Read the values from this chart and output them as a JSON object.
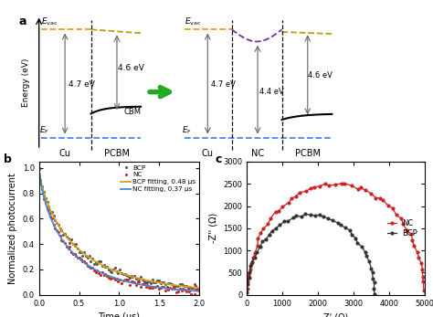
{
  "tpc": {
    "tau_bcp": 0.48,
    "tau_nc": 0.37,
    "bcp_color": "#555555",
    "nc_color": "#cc2222",
    "bcp_fit_color": "#d4a020",
    "nc_fit_color": "#4488cc"
  },
  "impedance": {
    "nc_color": "#cc2222",
    "bcp_color": "#333333",
    "xlabel": "Z' (Ω)",
    "ylabel": "-Z'' (Ω)",
    "xlim": [
      0,
      5000
    ],
    "ylim": [
      0,
      3000
    ],
    "nc_R": 2500,
    "nc_x0": 2500,
    "bcp_R": 1800,
    "bcp_x0": 1800
  },
  "arrow_color": "#22aa22",
  "evac_orange": "#e8a020",
  "evac_gold": "#b8a010",
  "evac_purple": "#7030a0",
  "ef_blue": "#4488ee",
  "bg_color": "#ffffff"
}
